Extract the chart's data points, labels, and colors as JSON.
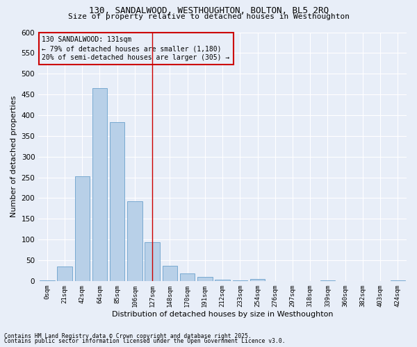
{
  "title_line1": "130, SANDALWOOD, WESTHOUGHTON, BOLTON, BL5 2RQ",
  "title_line2": "Size of property relative to detached houses in Westhoughton",
  "xlabel": "Distribution of detached houses by size in Westhoughton",
  "ylabel": "Number of detached properties",
  "bar_color": "#b8d0e8",
  "bar_edge_color": "#6aa0cc",
  "categories": [
    "0sqm",
    "21sqm",
    "42sqm",
    "64sqm",
    "85sqm",
    "106sqm",
    "127sqm",
    "148sqm",
    "170sqm",
    "191sqm",
    "212sqm",
    "233sqm",
    "254sqm",
    "276sqm",
    "297sqm",
    "318sqm",
    "339sqm",
    "360sqm",
    "382sqm",
    "403sqm",
    "424sqm"
  ],
  "values": [
    2,
    35,
    253,
    465,
    383,
    192,
    93,
    36,
    18,
    10,
    3,
    1,
    4,
    0,
    0,
    0,
    2,
    0,
    0,
    0,
    1
  ],
  "ylim": [
    0,
    600
  ],
  "yticks": [
    0,
    50,
    100,
    150,
    200,
    250,
    300,
    350,
    400,
    450,
    500,
    550,
    600
  ],
  "vline_pos": 6.0,
  "vline_color": "#cc0000",
  "annotation_title": "130 SANDALWOOD: 131sqm",
  "annotation_line1": "← 79% of detached houses are smaller (1,180)",
  "annotation_line2": "20% of semi-detached houses are larger (305) →",
  "annotation_box_color": "#cc0000",
  "bg_color": "#e8eef8",
  "grid_color": "#ffffff",
  "footnote1": "Contains HM Land Registry data © Crown copyright and database right 2025.",
  "footnote2": "Contains public sector information licensed under the Open Government Licence v3.0."
}
